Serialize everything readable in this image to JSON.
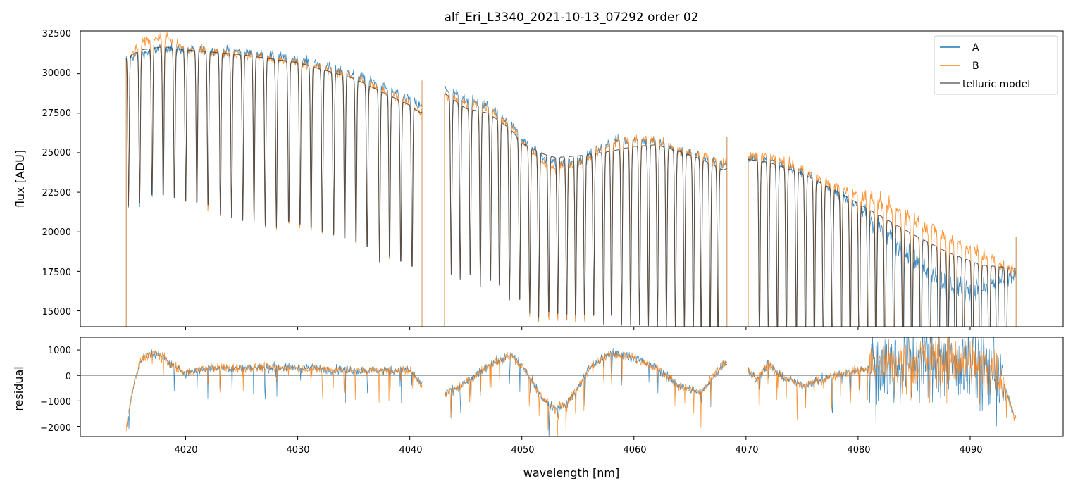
{
  "chart_data": [
    {
      "type": "line",
      "title": "alf_Eri_L3340_2021-10-13_07292  order 02",
      "xlabel": "",
      "ylabel": "flux [ADU]",
      "xlim": [
        4010.6,
        4098.3
      ],
      "ylim": [
        14000,
        32700
      ],
      "yticks": [
        15000,
        17500,
        20000,
        22500,
        25000,
        27500,
        30000,
        32500
      ],
      "xticks": [
        4020,
        4030,
        4040,
        4050,
        4060,
        4070,
        4080,
        4090
      ],
      "grid": false,
      "legend_position": "top-right",
      "segments": [
        [
          4014.7,
          4041.1
        ],
        [
          4043.1,
          4068.3
        ],
        [
          4070.2,
          4094.1
        ]
      ],
      "line_centers": [
        4014.9,
        4015.9,
        4017.0,
        4018.0,
        4019.0,
        4020.0,
        4021.0,
        4022.0,
        4023.1,
        4024.1,
        4025.1,
        4026.1,
        4027.1,
        4028.1,
        4029.2,
        4030.2,
        4031.2,
        4032.2,
        4033.2,
        4034.2,
        4035.2,
        4036.2,
        4037.3,
        4038.2,
        4039.2,
        4040.2,
        4043.7,
        4044.5,
        4045.4,
        4046.3,
        4047.2,
        4048.0,
        4048.9,
        4049.8,
        4050.7,
        4051.5,
        4052.4,
        4053.2,
        4054.0,
        4054.8,
        4055.6,
        4056.4,
        4057.3,
        4058.0,
        4058.9,
        4059.7,
        4060.5,
        4061.3,
        4062.1,
        4062.9,
        4063.7,
        4064.5,
        4065.3,
        4066.0,
        4066.8,
        4067.5,
        4071.2,
        4072.0,
        4072.8,
        4073.6,
        4074.5,
        4075.3,
        4076.1,
        4076.9,
        4077.7,
        4078.5,
        4079.3,
        4080.1,
        4080.9,
        4081.6,
        4082.4,
        4083.2,
        4084.0,
        4084.8,
        4085.6,
        4086.4,
        4087.2,
        4088.0,
        4088.7,
        4089.4,
        4090.2,
        4090.9,
        4091.7,
        4092.4,
        4093.2
      ],
      "continuum_points": {
        "x": [
          4014.7,
          4016,
          4018,
          4020,
          4025,
          4030,
          4035,
          4040,
          4041,
          4043,
          4045,
          4047,
          4049,
          4050,
          4052,
          4053,
          4055,
          4058,
          4060,
          4062,
          4064,
          4066,
          4068,
          4070,
          4072,
          4075,
          4078,
          4080,
          4082,
          4085,
          4088,
          4091,
          4094
        ],
        "y": [
          31000,
          31500,
          31700,
          31500,
          31200,
          30700,
          29700,
          28000,
          27500,
          28800,
          27800,
          27500,
          26500,
          25600,
          24900,
          24700,
          24800,
          25100,
          25400,
          25500,
          25100,
          24600,
          23900,
          24600,
          24400,
          23700,
          22600,
          21800,
          21000,
          19800,
          18700,
          17900,
          17700
        ]
      },
      "series": [
        {
          "name": "A",
          "color": "#1f77b4",
          "values_description_offset": [
            0,
            -300,
            0,
            0,
            200,
            200,
            300,
            400,
            400,
            300,
            600,
            500,
            400,
            300,
            -300,
            -300,
            -400,
            700,
            400,
            200,
            100,
            200,
            300,
            0,
            200,
            100,
            -100,
            -200,
            -800,
            -1500,
            -2000,
            -1500,
            -400
          ],
          "noise": 450
        },
        {
          "name": "B",
          "color": "#ff7f0e",
          "values_description_offset": [
            -200,
            400,
            800,
            0,
            0,
            0,
            100,
            100,
            100,
            -100,
            300,
            400,
            200,
            100,
            -600,
            -600,
            -500,
            500,
            500,
            300,
            0,
            300,
            400,
            100,
            500,
            200,
            300,
            600,
            900,
            1000,
            900,
            700,
            -200
          ],
          "noise": 450
        },
        {
          "name": "telluric model",
          "color": "#444444",
          "values_description_offset": [
            0,
            0,
            0,
            0,
            0,
            0,
            0,
            0,
            0,
            0,
            0,
            0,
            0,
            0,
            0,
            0,
            0,
            0,
            0,
            0,
            0,
            0,
            0,
            0,
            0,
            0,
            0,
            0,
            0,
            0,
            0,
            0,
            0
          ],
          "noise": 0
        }
      ]
    },
    {
      "type": "line",
      "title": "",
      "xlabel": "wavelength [nm]",
      "ylabel": "residual",
      "xlim": [
        4010.6,
        4098.3
      ],
      "ylim": [
        -2400,
        1500
      ],
      "yticks": [
        -2000,
        -1000,
        0,
        1000
      ],
      "xticks": [
        4020,
        4030,
        4040,
        4050,
        4060,
        4070,
        4080,
        4090
      ],
      "reference_line": 0,
      "grid": false,
      "residual_trend": {
        "x": [
          4014.7,
          4015.3,
          4016,
          4017,
          4018,
          4019,
          4020,
          4022,
          4025,
          4030,
          4035,
          4040,
          4041,
          4043,
          4045,
          4047,
          4049,
          4050,
          4051,
          4052,
          4053,
          4054,
          4055,
          4056,
          4058,
          4060,
          4062,
          4064,
          4066,
          4068,
          4070,
          4071,
          4072,
          4073,
          4075,
          4078,
          4080,
          4082,
          4084,
          4086,
          4088,
          4090,
          4092,
          4093,
          4094
        ],
        "y": [
          -2000,
          -500,
          600,
          900,
          700,
          300,
          100,
          300,
          300,
          300,
          200,
          200,
          -300,
          -800,
          -300,
          400,
          800,
          400,
          -300,
          -1000,
          -1300,
          -1100,
          -500,
          300,
          900,
          700,
          300,
          -400,
          -700,
          500,
          300,
          -200,
          500,
          0,
          -400,
          0,
          200,
          400,
          500,
          700,
          600,
          500,
          300,
          -300,
          -1700
        ]
      },
      "series": [
        {
          "name": "A",
          "color": "#1f77b4",
          "noise_low": 250,
          "noise_high": 2200
        },
        {
          "name": "B",
          "color": "#ff7f0e",
          "noise_low": 250,
          "noise_high": 1400
        }
      ]
    }
  ],
  "legend": {
    "items": [
      {
        "label": "A",
        "color": "#1f77b4"
      },
      {
        "label": "B",
        "color": "#ff7f0e"
      },
      {
        "label": "telluric model",
        "color": "#444444"
      }
    ]
  },
  "top": {
    "title": "alf_Eri_L3340_2021-10-13_07292  order 02",
    "ylabel": "flux [ADU]",
    "yticks": [
      "15000",
      "17500",
      "20000",
      "22500",
      "25000",
      "27500",
      "30000",
      "32500"
    ]
  },
  "bottom": {
    "ylabel": "residual",
    "xlabel": "wavelength [nm]",
    "yticks": [
      "−2000",
      "−1000",
      "0",
      "1000"
    ],
    "xticks": [
      "4020",
      "4030",
      "4040",
      "4050",
      "4060",
      "4070",
      "4080",
      "4090"
    ]
  }
}
